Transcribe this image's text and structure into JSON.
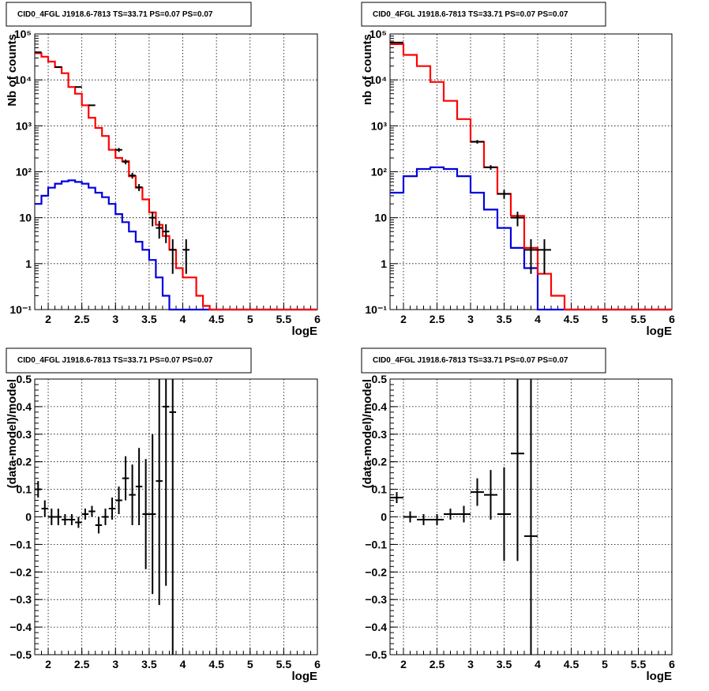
{
  "title": "CID0_4FGL J1918.6-7813 TS=33.71 PS=0.07 PS=0.07",
  "colors": {
    "data": "#000000",
    "model_total": "#ff0000",
    "model_source": "#0000dd",
    "grid": "#000000"
  },
  "chart_data": [
    {
      "id": "counts_fine",
      "type": "line",
      "title": "CID0_4FGL J1918.6-7813 TS=33.71 PS=0.07 PS=0.07",
      "xlabel": "logE",
      "ylabel": "Nb of counts",
      "xlim": [
        1.8,
        6.0
      ],
      "ylim": [
        0.1,
        100000
      ],
      "yscale": "log",
      "grid": true,
      "xticks": [
        "2",
        "2.5",
        "3",
        "3.5",
        "4",
        "4.5",
        "5",
        "5.5",
        "6"
      ],
      "yticks": [
        "10⁻¹",
        "1",
        "10",
        "10²",
        "10³",
        "10⁴",
        "10⁵"
      ],
      "bin_edges": [
        1.8,
        1.9,
        2.0,
        2.1,
        2.2,
        2.3,
        2.4,
        2.5,
        2.6,
        2.7,
        2.8,
        2.9,
        3.0,
        3.1,
        3.2,
        3.3,
        3.4,
        3.5,
        3.6,
        3.7,
        3.8,
        3.9,
        4.0,
        4.1,
        4.2,
        4.3,
        4.4,
        4.5,
        4.6,
        4.7,
        4.8,
        4.9,
        5.0,
        5.1,
        5.2,
        5.3,
        5.4,
        5.5,
        5.6,
        5.7,
        5.8,
        5.9,
        6.0
      ],
      "series": [
        {
          "name": "total model",
          "values": [
            38000,
            32000,
            25000,
            19000,
            14000,
            7000,
            5000,
            2800,
            1500,
            900,
            600,
            300,
            200,
            170,
            80,
            45,
            25,
            13,
            7,
            4,
            2,
            0.8,
            0.5,
            0.5,
            0.2,
            0.12,
            0.1,
            0.1,
            0.1,
            0.1,
            0.1,
            0.1,
            0.1,
            0.1,
            0.1,
            0.1,
            0.1,
            0.1,
            0.1,
            0.1,
            0.1,
            0.1
          ]
        },
        {
          "name": "source model",
          "values": [
            20,
            30,
            45,
            55,
            62,
            65,
            60,
            55,
            45,
            35,
            28,
            20,
            12,
            8,
            5,
            3,
            2,
            1.2,
            0.5,
            0.2,
            0.1,
            0.1,
            0.1,
            0.1,
            0.1,
            0.1,
            0.1,
            0.1,
            0.1,
            0.1,
            0.1,
            0.1,
            0.1,
            0.1,
            0.1,
            0.1,
            0.1,
            0.1,
            0.1,
            0.1,
            0.1,
            0.1
          ]
        }
      ],
      "points": [
        {
          "x": 1.85,
          "y": 40000,
          "err": 0
        },
        {
          "x": 2.15,
          "y": 19000,
          "err": 0
        },
        {
          "x": 2.45,
          "y": 7000,
          "err": 0
        },
        {
          "x": 2.65,
          "y": 2800,
          "err": 0
        },
        {
          "x": 3.05,
          "y": 300,
          "err": 30
        },
        {
          "x": 3.15,
          "y": 165,
          "err": 20
        },
        {
          "x": 3.25,
          "y": 83,
          "err": 12
        },
        {
          "x": 3.35,
          "y": 46,
          "err": 8
        },
        {
          "x": 3.55,
          "y": 10,
          "err": 3.5
        },
        {
          "x": 3.65,
          "y": 6,
          "err": 2.5
        },
        {
          "x": 3.75,
          "y": 5,
          "err": 2.2
        },
        {
          "x": 3.85,
          "y": 2,
          "err": 1.4
        },
        {
          "x": 4.05,
          "y": 2,
          "err": 1.4
        }
      ]
    },
    {
      "id": "counts_coarse",
      "type": "line",
      "title": "CID0_4FGL J1918.6-7813 TS=33.71 PS=0.07 PS=0.07",
      "xlabel": "logE",
      "ylabel": "nb of counts",
      "xlim": [
        1.8,
        6.0
      ],
      "ylim": [
        0.1,
        100000
      ],
      "yscale": "log",
      "grid": true,
      "xticks": [
        "2",
        "2.5",
        "3",
        "3.5",
        "4",
        "4.5",
        "5",
        "5.5",
        "6"
      ],
      "yticks": [
        "10⁻¹",
        "1",
        "10",
        "10²",
        "10³",
        "10⁴",
        "10⁵"
      ],
      "bin_edges": [
        1.8,
        2.0,
        2.2,
        2.4,
        2.6,
        2.8,
        3.0,
        3.2,
        3.4,
        3.6,
        3.8,
        4.0,
        4.2,
        4.4,
        4.6,
        4.8,
        5.0,
        5.2,
        5.4,
        5.6,
        5.8,
        6.0
      ],
      "series": [
        {
          "name": "total model",
          "values": [
            60000,
            35000,
            20000,
            9000,
            3500,
            1400,
            450,
            125,
            33,
            11,
            2.2,
            0.6,
            0.2,
            0.1,
            0.1,
            0.1,
            0.1,
            0.1,
            0.1,
            0.1,
            0.1
          ]
        },
        {
          "name": "source model",
          "values": [
            35,
            80,
            115,
            125,
            115,
            80,
            35,
            15,
            6,
            2.2,
            0.8,
            0.1,
            0.1,
            0.1,
            0.1,
            0.1,
            0.1,
            0.1,
            0.1,
            0.1,
            0.1
          ]
        }
      ],
      "points": [
        {
          "x": 1.9,
          "y": 65000,
          "err": 0
        },
        {
          "x": 3.1,
          "y": 450,
          "err": 40
        },
        {
          "x": 3.3,
          "y": 125,
          "err": 14
        },
        {
          "x": 3.5,
          "y": 33,
          "err": 7
        },
        {
          "x": 3.7,
          "y": 10,
          "err": 3.5
        },
        {
          "x": 3.9,
          "y": 2,
          "err": 1.4
        },
        {
          "x": 4.1,
          "y": 2,
          "err": 1.4
        }
      ]
    },
    {
      "id": "residuals_fine",
      "type": "scatter",
      "title": "CID0_4FGL J1918.6-7813 TS=33.71 PS=0.07 PS=0.07",
      "xlabel": "logE",
      "ylabel": "(data-model)/model",
      "xlim": [
        1.8,
        6.0
      ],
      "ylim": [
        -0.5,
        0.5
      ],
      "yscale": "linear",
      "grid": true,
      "xticks": [
        "2",
        "2.5",
        "3",
        "3.5",
        "4",
        "4.5",
        "5",
        "5.5",
        "6"
      ],
      "yticks": [
        "−0.5",
        "−0.4",
        "−0.3",
        "−0.2",
        "−0.1",
        "0",
        "0.1",
        "0.2",
        "0.3",
        "0.4",
        "0.5"
      ],
      "ytick_values": [
        -0.5,
        -0.4,
        -0.3,
        -0.2,
        -0.1,
        0,
        0.1,
        0.2,
        0.3,
        0.4,
        0.5
      ],
      "xhalf": 0.05,
      "points": [
        {
          "x": 1.85,
          "y": 0.1,
          "err": 0.03
        },
        {
          "x": 1.95,
          "y": 0.03,
          "err": 0.03
        },
        {
          "x": 2.05,
          "y": 0.0,
          "err": 0.03
        },
        {
          "x": 2.15,
          "y": 0.0,
          "err": 0.03
        },
        {
          "x": 2.25,
          "y": -0.01,
          "err": 0.02
        },
        {
          "x": 2.35,
          "y": -0.01,
          "err": 0.02
        },
        {
          "x": 2.45,
          "y": -0.02,
          "err": 0.02
        },
        {
          "x": 2.55,
          "y": 0.01,
          "err": 0.02
        },
        {
          "x": 2.65,
          "y": 0.02,
          "err": 0.02
        },
        {
          "x": 2.75,
          "y": -0.03,
          "err": 0.03
        },
        {
          "x": 2.85,
          "y": 0.0,
          "err": 0.03
        },
        {
          "x": 2.95,
          "y": 0.03,
          "err": 0.04
        },
        {
          "x": 3.05,
          "y": 0.06,
          "err": 0.05
        },
        {
          "x": 3.15,
          "y": 0.14,
          "err": 0.08
        },
        {
          "x": 3.25,
          "y": 0.08,
          "err": 0.11
        },
        {
          "x": 3.35,
          "y": 0.11,
          "err": 0.14
        },
        {
          "x": 3.45,
          "y": 0.01,
          "err": 0.2
        },
        {
          "x": 3.55,
          "y": 0.01,
          "err": 0.29
        },
        {
          "x": 3.65,
          "y": 0.13,
          "err": 0.45
        },
        {
          "x": 3.75,
          "y": 0.4,
          "err": 0.65
        },
        {
          "x": 3.85,
          "y": 0.38,
          "err": 0.9
        }
      ]
    },
    {
      "id": "residuals_coarse",
      "type": "scatter",
      "title": "CID0_4FGL J1918.6-7813 TS=33.71 PS=0.07 PS=0.07",
      "xlabel": "logE",
      "ylabel": "(data-model)/model",
      "xlim": [
        1.8,
        6.0
      ],
      "ylim": [
        -0.5,
        0.5
      ],
      "yscale": "linear",
      "grid": true,
      "xticks": [
        "2",
        "2.5",
        "3",
        "3.5",
        "4",
        "4.5",
        "5",
        "5.5",
        "6"
      ],
      "yticks": [
        "−0.5",
        "−0.4",
        "−0.3",
        "−0.2",
        "−0.1",
        "0",
        "0.1",
        "0.2",
        "0.3",
        "0.4",
        "0.5"
      ],
      "ytick_values": [
        -0.5,
        -0.4,
        -0.3,
        -0.2,
        -0.1,
        0,
        0.1,
        0.2,
        0.3,
        0.4,
        0.5
      ],
      "xhalf": 0.1,
      "points": [
        {
          "x": 1.9,
          "y": 0.07,
          "err": 0.02
        },
        {
          "x": 2.1,
          "y": 0.0,
          "err": 0.02
        },
        {
          "x": 2.3,
          "y": -0.01,
          "err": 0.02
        },
        {
          "x": 2.5,
          "y": -0.01,
          "err": 0.02
        },
        {
          "x": 2.7,
          "y": 0.01,
          "err": 0.02
        },
        {
          "x": 2.9,
          "y": 0.01,
          "err": 0.03
        },
        {
          "x": 3.1,
          "y": 0.09,
          "err": 0.05
        },
        {
          "x": 3.3,
          "y": 0.08,
          "err": 0.09
        },
        {
          "x": 3.5,
          "y": 0.01,
          "err": 0.17
        },
        {
          "x": 3.7,
          "y": 0.23,
          "err": 0.39
        },
        {
          "x": 3.9,
          "y": -0.07,
          "err": 0.6
        }
      ]
    }
  ]
}
